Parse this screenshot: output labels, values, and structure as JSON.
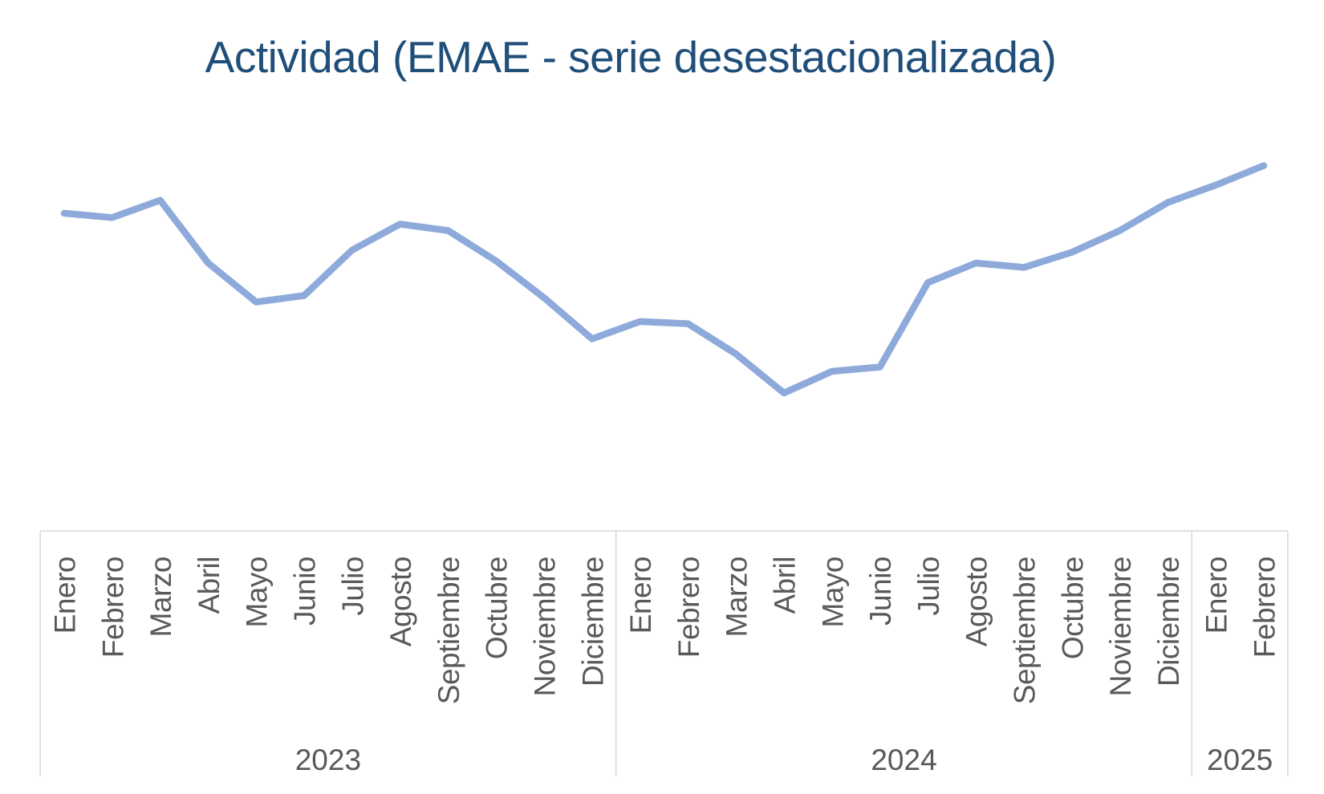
{
  "title": "Actividad (EMAE - serie desestacionalizada)",
  "colors": {
    "background": "#FFFFFF",
    "title_text": "#1F4E79",
    "series_line": "#8EAADB",
    "axis_lines": "#D6D6D6",
    "axis_text": "#595959"
  },
  "chart_data": {
    "type": "line",
    "title": "Actividad (EMAE - serie desestacionalizada)",
    "legend_position": "none",
    "gridlines": false,
    "y_axis_visible": false,
    "ylim": [
      141.5,
      152.0
    ],
    "x_groups": [
      {
        "year": "2023",
        "months": [
          "Enero",
          "Febrero",
          "Marzo",
          "Abril",
          "Mayo",
          "Junio",
          "Julio",
          "Agosto",
          "Septiembre",
          "Octubre",
          "Noviembre",
          "Diciembre"
        ]
      },
      {
        "year": "2024",
        "months": [
          "Enero",
          "Febrero",
          "Marzo",
          "Abril",
          "Mayo",
          "Junio",
          "Julio",
          "Agosto",
          "Septiembre",
          "Octubre",
          "Noviembre",
          "Diciembre"
        ]
      },
      {
        "year": "2025",
        "months": [
          "Enero",
          "Febrero"
        ]
      }
    ],
    "series": [
      {
        "name": "EMAE serie desestacionalizada",
        "values": [
          149.8,
          149.6,
          150.4,
          147.5,
          145.7,
          146.0,
          148.1,
          149.3,
          149.0,
          147.6,
          145.9,
          144.0,
          144.8,
          144.7,
          143.3,
          141.5,
          142.5,
          142.7,
          146.6,
          147.5,
          147.3,
          148.0,
          149.0,
          150.3,
          151.1,
          152.0
        ]
      }
    ]
  }
}
